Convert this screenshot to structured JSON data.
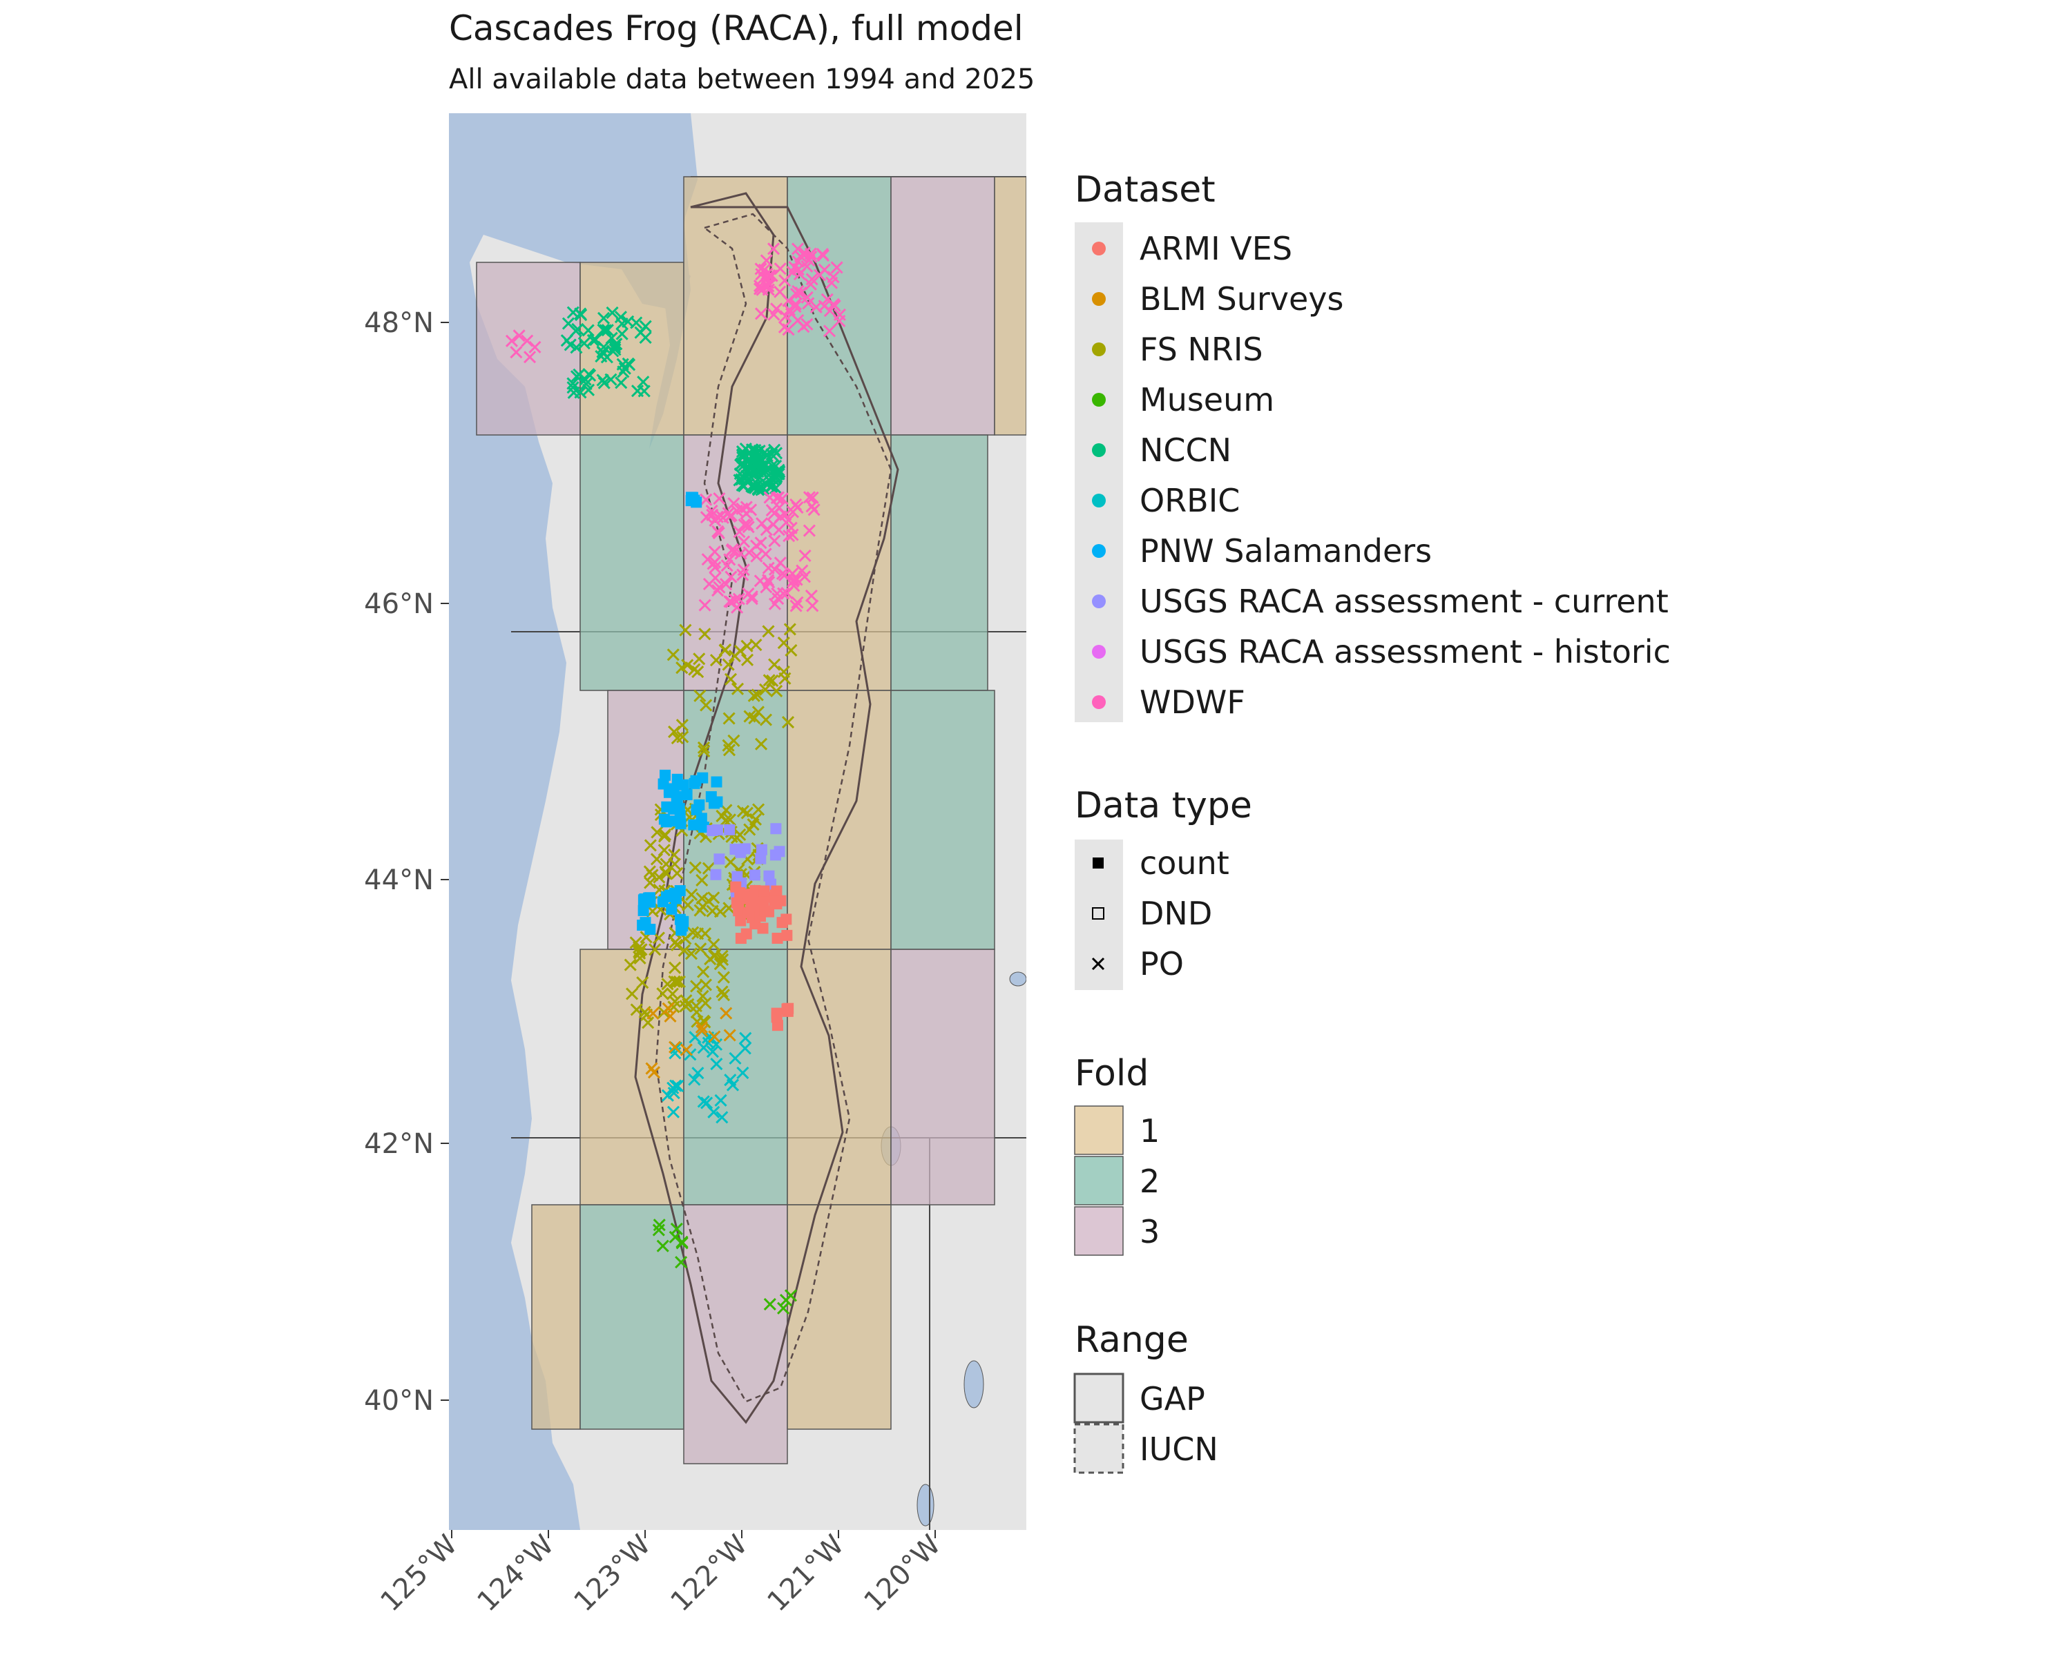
{
  "title": "Cascades Frog (RACA), full model",
  "subtitle": "All available data between 1994 and 2025",
  "axes": {
    "x_ticks": [
      "125°W",
      "124°W",
      "123°W",
      "122°W",
      "121°W",
      "120°W"
    ],
    "y_ticks": [
      "48°N",
      "46°N",
      "44°N",
      "42°N",
      "40°N"
    ]
  },
  "colors": {
    "ocean": "#b0c4de",
    "land": "#e5e5e5",
    "fold1": "#d4bd93",
    "fold2": "#8fbcac",
    "fold3": "#c9b3c0"
  },
  "legend": {
    "dataset": {
      "title": "Dataset",
      "items": [
        {
          "label": "ARMI VES",
          "color": "#F8766D"
        },
        {
          "label": "BLM Surveys",
          "color": "#D89000"
        },
        {
          "label": "FS NRIS",
          "color": "#A3A500"
        },
        {
          "label": "Museum",
          "color": "#39B600"
        },
        {
          "label": "NCCN",
          "color": "#00BF7D"
        },
        {
          "label": "ORBIC",
          "color": "#00BFC4"
        },
        {
          "label": "PNW Salamanders",
          "color": "#00B0F6"
        },
        {
          "label": "USGS RACA assessment - current",
          "color": "#9590FF"
        },
        {
          "label": "USGS RACA assessment - historic",
          "color": "#E76BF3"
        },
        {
          "label": "WDWF",
          "color": "#FF62BC"
        }
      ]
    },
    "data_type": {
      "title": "Data type",
      "items": [
        {
          "label": "count",
          "shape": "filled-square"
        },
        {
          "label": "DND",
          "shape": "open-square"
        },
        {
          "label": "PO",
          "shape": "cross"
        }
      ]
    },
    "fold": {
      "title": "Fold",
      "items": [
        {
          "label": "1",
          "color": "#e8d4b0"
        },
        {
          "label": "2",
          "color": "#a3cfc2"
        },
        {
          "label": "3",
          "color": "#dcc6d3"
        }
      ]
    },
    "range": {
      "title": "Range",
      "items": [
        {
          "label": "GAP",
          "line": "solid"
        },
        {
          "label": "IUCN",
          "line": "dashed"
        }
      ]
    }
  }
}
